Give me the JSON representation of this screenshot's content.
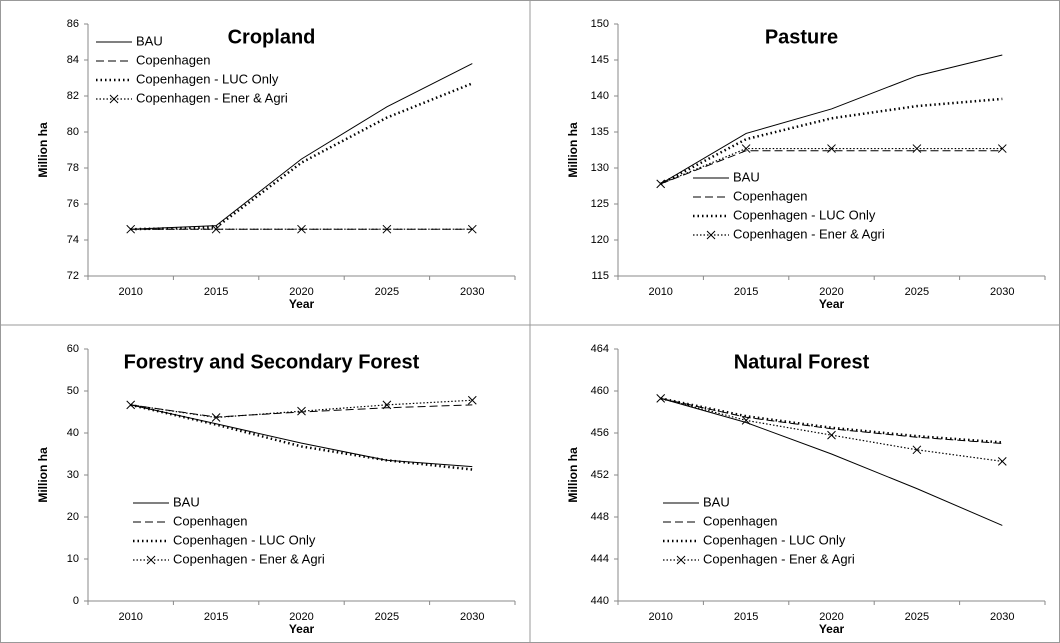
{
  "chart_data": [
    {
      "type": "line",
      "title": "Cropland",
      "ylabel": "Million ha",
      "xlabel": "Year",
      "categories": [
        "2010",
        "2015",
        "2020",
        "2025",
        "2030"
      ],
      "ylim": [
        72,
        86
      ],
      "yticks": [
        72,
        74,
        76,
        78,
        80,
        82,
        84,
        86
      ],
      "legend": "upper left",
      "series": [
        {
          "name": "BAU",
          "color": "#000000",
          "dash": "solid",
          "values": [
            74.6,
            74.8,
            78.5,
            81.4,
            83.8
          ]
        },
        {
          "name": "Copenhagen",
          "color": "#000000",
          "dash": "dashed",
          "values": [
            74.6,
            74.6,
            74.6,
            74.6,
            74.6
          ]
        },
        {
          "name": "Copenhagen - LUC Only",
          "color": "#000000",
          "dash": "dotted",
          "values": [
            74.6,
            74.7,
            78.3,
            80.8,
            82.7
          ]
        },
        {
          "name": "Copenhagen - Ener & Agri",
          "color": "#000000",
          "dash": "dotted-x",
          "values": [
            74.6,
            74.6,
            74.6,
            74.6,
            74.6
          ]
        }
      ]
    },
    {
      "type": "line",
      "title": "Pasture",
      "ylabel": "Million ha",
      "xlabel": "Year",
      "categories": [
        "2010",
        "2015",
        "2020",
        "2025",
        "2030"
      ],
      "ylim": [
        115,
        150
      ],
      "yticks": [
        115,
        120,
        125,
        130,
        135,
        140,
        145,
        150
      ],
      "legend": "lower center",
      "series": [
        {
          "name": "BAU",
          "color": "#000000",
          "dash": "solid",
          "values": [
            127.8,
            134.8,
            138.2,
            142.8,
            145.7
          ]
        },
        {
          "name": "Copenhagen",
          "color": "#000000",
          "dash": "dashed",
          "values": [
            127.8,
            132.4,
            132.4,
            132.4,
            132.4
          ]
        },
        {
          "name": "Copenhagen - LUC Only",
          "color": "#000000",
          "dash": "dotted",
          "values": [
            127.8,
            134.0,
            136.9,
            138.6,
            139.6
          ]
        },
        {
          "name": "Copenhagen - Ener & Agri",
          "color": "#000000",
          "dash": "dotted-x",
          "values": [
            127.8,
            132.7,
            132.7,
            132.7,
            132.7
          ]
        }
      ]
    },
    {
      "type": "line",
      "title": "Forestry and Secondary Forest",
      "ylabel": "Million ha",
      "xlabel": "Year",
      "categories": [
        "2010",
        "2015",
        "2020",
        "2025",
        "2030"
      ],
      "ylim": [
        0,
        60
      ],
      "yticks": [
        0,
        10,
        20,
        30,
        40,
        50,
        60
      ],
      "legend": "lower left",
      "series": [
        {
          "name": "BAU",
          "color": "#000000",
          "dash": "solid",
          "values": [
            46.7,
            42.2,
            37.6,
            33.5,
            32.0
          ]
        },
        {
          "name": "Copenhagen",
          "color": "#000000",
          "dash": "dashed",
          "values": [
            46.7,
            43.8,
            45.0,
            46.0,
            46.7
          ]
        },
        {
          "name": "Copenhagen - LUC Only",
          "color": "#000000",
          "dash": "dotted",
          "values": [
            46.7,
            42.0,
            36.8,
            33.5,
            31.3
          ]
        },
        {
          "name": "Copenhagen - Ener & Agri",
          "color": "#000000",
          "dash": "dotted-x",
          "values": [
            46.7,
            43.7,
            45.2,
            46.7,
            47.8
          ]
        }
      ]
    },
    {
      "type": "line",
      "title": "Natural Forest",
      "ylabel": "Million ha",
      "xlabel": "Year",
      "categories": [
        "2010",
        "2015",
        "2020",
        "2025",
        "2030"
      ],
      "ylim": [
        440,
        464
      ],
      "yticks": [
        440,
        444,
        448,
        452,
        456,
        460,
        464
      ],
      "legend": "lower left",
      "series": [
        {
          "name": "BAU",
          "color": "#000000",
          "dash": "solid",
          "values": [
            459.3,
            457.0,
            454.0,
            450.7,
            447.2
          ]
        },
        {
          "name": "Copenhagen",
          "color": "#000000",
          "dash": "dashed",
          "values": [
            459.3,
            457.5,
            456.4,
            455.6,
            455.0
          ]
        },
        {
          "name": "Copenhagen - LUC Only",
          "color": "#000000",
          "dash": "dotted",
          "values": [
            459.3,
            457.6,
            456.5,
            455.7,
            455.1
          ]
        },
        {
          "name": "Copenhagen - Ener & Agri",
          "color": "#000000",
          "dash": "dotted-x",
          "values": [
            459.3,
            457.2,
            455.8,
            454.4,
            453.3
          ]
        }
      ]
    }
  ]
}
